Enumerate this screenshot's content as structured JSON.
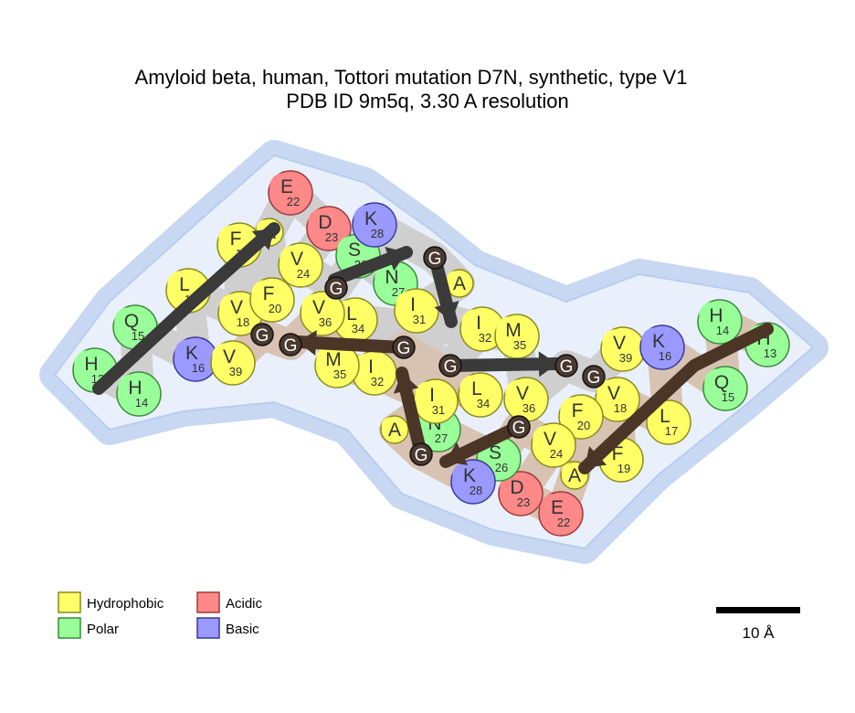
{
  "title": {
    "line1": "Amyloid beta, human, Tottori mutation D7N, synthetic, type V1",
    "line2": "PDB ID 9m5q, 3.30 A resolution"
  },
  "colors": {
    "hydrophobic": "#ffff66",
    "polar": "#99ff99",
    "acidic": "#ff8888",
    "basic": "#9999ff",
    "glycine": "#4a3a30",
    "halo": "#dde8fa",
    "arrow_chain_a": "#3a3a3a",
    "arrow_chain_b": "#4a3526"
  },
  "chains": [
    {
      "name": "chain-a",
      "residues": [
        {
          "letter": "H",
          "num": "13",
          "cls": "polar"
        },
        {
          "letter": "H",
          "num": "14",
          "cls": "polar"
        },
        {
          "letter": "Q",
          "num": "15",
          "cls": "polar"
        },
        {
          "letter": "K",
          "num": "16",
          "cls": "basic"
        },
        {
          "letter": "L",
          "num": "17",
          "cls": "hydrophobic"
        },
        {
          "letter": "V",
          "num": "18",
          "cls": "hydrophobic"
        },
        {
          "letter": "F",
          "num": "19",
          "cls": "hydrophobic"
        },
        {
          "letter": "F",
          "num": "20",
          "cls": "hydrophobic"
        },
        {
          "letter": "A",
          "num": "",
          "cls": "hydrophobic"
        },
        {
          "letter": "E",
          "num": "22",
          "cls": "acidic"
        },
        {
          "letter": "D",
          "num": "23",
          "cls": "acidic"
        },
        {
          "letter": "V",
          "num": "24",
          "cls": "hydrophobic"
        },
        {
          "letter": "G",
          "num": "",
          "cls": "glycine"
        },
        {
          "letter": "S",
          "num": "26",
          "cls": "polar"
        },
        {
          "letter": "N",
          "num": "27",
          "cls": "polar"
        },
        {
          "letter": "K",
          "num": "28",
          "cls": "basic"
        },
        {
          "letter": "G",
          "num": "",
          "cls": "glycine"
        },
        {
          "letter": "A",
          "num": "",
          "cls": "hydrophobic"
        },
        {
          "letter": "I",
          "num": "31",
          "cls": "hydrophobic"
        },
        {
          "letter": "I",
          "num": "32",
          "cls": "hydrophobic"
        },
        {
          "letter": "G",
          "num": "",
          "cls": "glycine"
        },
        {
          "letter": "L",
          "num": "34",
          "cls": "hydrophobic"
        },
        {
          "letter": "M",
          "num": "35",
          "cls": "hydrophobic"
        },
        {
          "letter": "V",
          "num": "36",
          "cls": "hydrophobic"
        },
        {
          "letter": "G",
          "num": "",
          "cls": "glycine"
        },
        {
          "letter": "G",
          "num": "",
          "cls": "glycine"
        },
        {
          "letter": "V",
          "num": "39",
          "cls": "hydrophobic"
        }
      ]
    },
    {
      "name": "chain-b",
      "residues": [
        {
          "letter": "H",
          "num": "13",
          "cls": "polar"
        },
        {
          "letter": "H",
          "num": "14",
          "cls": "polar"
        },
        {
          "letter": "Q",
          "num": "15",
          "cls": "polar"
        },
        {
          "letter": "K",
          "num": "16",
          "cls": "basic"
        },
        {
          "letter": "L",
          "num": "17",
          "cls": "hydrophobic"
        },
        {
          "letter": "V",
          "num": "18",
          "cls": "hydrophobic"
        },
        {
          "letter": "F",
          "num": "19",
          "cls": "hydrophobic"
        },
        {
          "letter": "F",
          "num": "20",
          "cls": "hydrophobic"
        },
        {
          "letter": "A",
          "num": "",
          "cls": "hydrophobic"
        },
        {
          "letter": "E",
          "num": "22",
          "cls": "acidic"
        },
        {
          "letter": "D",
          "num": "23",
          "cls": "acidic"
        },
        {
          "letter": "V",
          "num": "24",
          "cls": "hydrophobic"
        },
        {
          "letter": "G",
          "num": "",
          "cls": "glycine"
        },
        {
          "letter": "S",
          "num": "26",
          "cls": "polar"
        },
        {
          "letter": "N",
          "num": "27",
          "cls": "polar"
        },
        {
          "letter": "K",
          "num": "28",
          "cls": "basic"
        },
        {
          "letter": "G",
          "num": "",
          "cls": "glycine"
        },
        {
          "letter": "A",
          "num": "",
          "cls": "hydrophobic"
        },
        {
          "letter": "I",
          "num": "31",
          "cls": "hydrophobic"
        },
        {
          "letter": "I",
          "num": "32",
          "cls": "hydrophobic"
        },
        {
          "letter": "G",
          "num": "",
          "cls": "glycine"
        },
        {
          "letter": "L",
          "num": "34",
          "cls": "hydrophobic"
        },
        {
          "letter": "M",
          "num": "35",
          "cls": "hydrophobic"
        },
        {
          "letter": "V",
          "num": "36",
          "cls": "hydrophobic"
        },
        {
          "letter": "G",
          "num": "",
          "cls": "glycine"
        },
        {
          "letter": "G",
          "num": "",
          "cls": "glycine"
        },
        {
          "letter": "V",
          "num": "39",
          "cls": "hydrophobic"
        }
      ]
    }
  ],
  "legend": [
    {
      "label": "Hydrophobic",
      "cls": "hydrophobic"
    },
    {
      "label": "Polar",
      "cls": "polar"
    },
    {
      "label": "Acidic",
      "cls": "acidic"
    },
    {
      "label": "Basic",
      "cls": "basic"
    }
  ],
  "scale_bar": {
    "label": "10 Å"
  }
}
